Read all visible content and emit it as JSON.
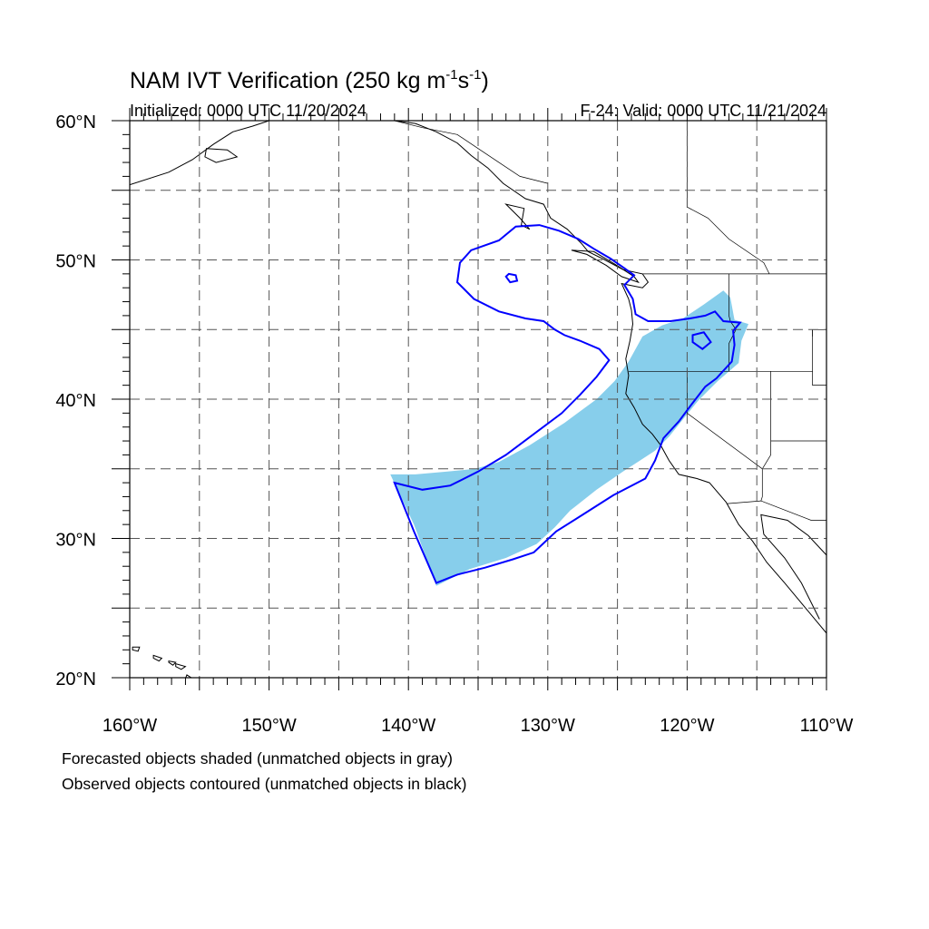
{
  "header": {
    "title_main": "NAM IVT Verification (250 kg m",
    "title_exp1": "-1",
    "title_mid": "s",
    "title_exp2": "-1",
    "title_close": ")",
    "initialized": "Initialized: 0000 UTC 11/20/2024",
    "valid": "F-24: Valid: 0000 UTC 11/21/2024"
  },
  "axes": {
    "lat_labels": [
      {
        "lat": 60,
        "text": "60°N"
      },
      {
        "lat": 50,
        "text": "50°N"
      },
      {
        "lat": 40,
        "text": "40°N"
      },
      {
        "lat": 30,
        "text": "30°N"
      },
      {
        "lat": 20,
        "text": "20°N"
      }
    ],
    "lon_labels": [
      {
        "lon": -160,
        "text": "160°W"
      },
      {
        "lon": -150,
        "text": "150°W"
      },
      {
        "lon": -140,
        "text": "140°W"
      },
      {
        "lon": -130,
        "text": "130°W"
      },
      {
        "lon": -120,
        "text": "120°W"
      },
      {
        "lon": -110,
        "text": "110°W"
      }
    ],
    "lon_range": [
      -160,
      -110
    ],
    "lat_range": [
      20,
      60
    ],
    "grid": true,
    "grid_interval_deg": 5
  },
  "legend": {
    "line1": "Forecasted objects shaded (unmatched objects in gray)",
    "line2": "Observed objects contoured (unmatched objects in black)"
  },
  "colors": {
    "forecast_fill": "#87ceeb",
    "observed_contour": "#0000ff",
    "coastline": "#000000",
    "grid": "#555555"
  },
  "objects": {
    "forecast": [
      [
        -141.3,
        34.6
      ],
      [
        -139.5,
        34.6
      ],
      [
        -137.2,
        34.8
      ],
      [
        -135.2,
        35.0
      ],
      [
        -133.5,
        35.5
      ],
      [
        -131.3,
        36.7
      ],
      [
        -128.8,
        38.3
      ],
      [
        -126.5,
        40.0
      ],
      [
        -125.2,
        41.3
      ],
      [
        -124.2,
        42.7
      ],
      [
        -123.2,
        44.5
      ],
      [
        -121.8,
        45.3
      ],
      [
        -120.3,
        45.8
      ],
      [
        -118.8,
        46.8
      ],
      [
        -117.4,
        47.8
      ],
      [
        -116.9,
        47.3
      ],
      [
        -116.6,
        45.7
      ],
      [
        -115.6,
        45.4
      ],
      [
        -116.1,
        44.2
      ],
      [
        -116.3,
        42.6
      ],
      [
        -117.8,
        41.3
      ],
      [
        -119.2,
        39.9
      ],
      [
        -120.1,
        38.8
      ],
      [
        -121.3,
        37.3
      ],
      [
        -122.3,
        36.3
      ],
      [
        -124.6,
        34.8
      ],
      [
        -126.5,
        33.5
      ],
      [
        -128.4,
        32.0
      ],
      [
        -129.5,
        30.8
      ],
      [
        -130.8,
        29.6
      ],
      [
        -133.0,
        28.6
      ],
      [
        -135.6,
        27.8
      ],
      [
        -138.0,
        26.6
      ],
      [
        -139.6,
        31.0
      ],
      [
        -141.3,
        34.6
      ]
    ],
    "observed_main": [
      [
        -141.0,
        34.0
      ],
      [
        -139.0,
        33.5
      ],
      [
        -137.0,
        33.8
      ],
      [
        -135.0,
        34.8
      ],
      [
        -133.0,
        36.0
      ],
      [
        -131.0,
        37.5
      ],
      [
        -129.0,
        39.0
      ],
      [
        -127.7,
        40.3
      ],
      [
        -126.5,
        41.6
      ],
      [
        -125.6,
        42.8
      ],
      [
        -126.3,
        43.6
      ],
      [
        -127.7,
        44.2
      ],
      [
        -128.8,
        44.6
      ],
      [
        -129.5,
        45.0
      ],
      [
        -130.3,
        45.6
      ],
      [
        -131.6,
        45.8
      ],
      [
        -133.5,
        46.3
      ],
      [
        -135.3,
        47.2
      ],
      [
        -136.5,
        48.4
      ],
      [
        -136.3,
        49.8
      ],
      [
        -135.5,
        50.7
      ],
      [
        -133.5,
        51.4
      ],
      [
        -132.3,
        52.4
      ],
      [
        -130.6,
        52.5
      ],
      [
        -129.2,
        52.1
      ],
      [
        -127.8,
        51.5
      ],
      [
        -126.7,
        50.8
      ],
      [
        -125.5,
        50.1
      ],
      [
        -124.5,
        49.4
      ],
      [
        -123.8,
        48.9
      ],
      [
        -124.5,
        48.2
      ],
      [
        -123.9,
        47.2
      ],
      [
        -123.7,
        46.1
      ],
      [
        -122.8,
        45.6
      ],
      [
        -121.2,
        45.6
      ],
      [
        -119.8,
        45.8
      ],
      [
        -118.7,
        46.0
      ],
      [
        -118.0,
        46.3
      ],
      [
        -117.4,
        45.6
      ],
      [
        -116.2,
        45.5
      ],
      [
        -116.7,
        44.9
      ],
      [
        -116.6,
        43.9
      ],
      [
        -116.8,
        42.7
      ],
      [
        -117.9,
        41.5
      ],
      [
        -118.7,
        40.9
      ],
      [
        -119.7,
        39.6
      ],
      [
        -120.6,
        38.4
      ],
      [
        -121.7,
        37.2
      ],
      [
        -122.3,
        35.6
      ],
      [
        -123.0,
        34.3
      ],
      [
        -125.3,
        33.1
      ],
      [
        -127.5,
        31.7
      ],
      [
        -129.4,
        30.5
      ],
      [
        -131.0,
        29.0
      ],
      [
        -132.5,
        28.5
      ],
      [
        -134.5,
        27.9
      ],
      [
        -136.5,
        27.4
      ],
      [
        -138.0,
        26.8
      ],
      [
        -139.6,
        30.5
      ],
      [
        -141.0,
        34.0
      ]
    ],
    "observed_hole": [
      [
        -132.8,
        49.0
      ],
      [
        -132.3,
        48.9
      ],
      [
        -132.2,
        48.5
      ],
      [
        -132.7,
        48.4
      ],
      [
        -133.0,
        48.8
      ],
      [
        -132.8,
        49.0
      ]
    ],
    "observed_lobe": [
      [
        -119.6,
        44.6
      ],
      [
        -118.8,
        44.8
      ],
      [
        -118.3,
        44.1
      ],
      [
        -118.9,
        43.6
      ],
      [
        -119.6,
        44.1
      ],
      [
        -119.6,
        44.6
      ]
    ]
  },
  "coast": {
    "main": [
      [
        -141.0,
        60.0
      ],
      [
        -139.5,
        59.8
      ],
      [
        -138.0,
        59.2
      ],
      [
        -136.5,
        58.4
      ],
      [
        -135.5,
        57.5
      ],
      [
        -134.3,
        56.6
      ],
      [
        -133.2,
        55.5
      ],
      [
        -131.6,
        54.4
      ],
      [
        -130.3,
        54.0
      ],
      [
        -129.8,
        53.0
      ],
      [
        -128.6,
        52.2
      ],
      [
        -127.6,
        51.2
      ],
      [
        -127.1,
        50.6
      ],
      [
        -125.9,
        50.0
      ],
      [
        -124.6,
        49.3
      ],
      [
        -123.2,
        49.0
      ],
      [
        -122.8,
        48.4
      ],
      [
        -123.2,
        48.0
      ],
      [
        -124.7,
        48.3
      ],
      [
        -124.2,
        47.2
      ],
      [
        -124.0,
        46.4
      ],
      [
        -123.9,
        45.4
      ],
      [
        -124.1,
        44.2
      ],
      [
        -124.4,
        42.9
      ],
      [
        -124.2,
        41.7
      ],
      [
        -124.4,
        40.4
      ],
      [
        -123.8,
        39.4
      ],
      [
        -123.2,
        38.2
      ],
      [
        -122.5,
        37.5
      ],
      [
        -121.9,
        36.7
      ],
      [
        -121.3,
        35.6
      ],
      [
        -120.6,
        34.6
      ],
      [
        -119.3,
        34.3
      ],
      [
        -118.4,
        34.0
      ],
      [
        -117.2,
        32.6
      ],
      [
        -116.3,
        31.0
      ],
      [
        -115.3,
        29.8
      ],
      [
        -114.3,
        28.3
      ],
      [
        -113.0,
        26.8
      ],
      [
        -111.5,
        25.0
      ],
      [
        -110.0,
        23.2
      ]
    ],
    "gulf": [
      [
        -110.0,
        28.8
      ],
      [
        -111.3,
        30.2
      ],
      [
        -112.8,
        31.3
      ],
      [
        -114.7,
        31.7
      ],
      [
        -114.5,
        30.3
      ],
      [
        -113.0,
        28.6
      ],
      [
        -111.8,
        26.8
      ],
      [
        -110.5,
        24.2
      ]
    ],
    "alaska": [
      [
        -160.0,
        55.4
      ],
      [
        -157.2,
        56.3
      ],
      [
        -155.5,
        57.2
      ],
      [
        -154.0,
        58.3
      ],
      [
        -152.6,
        59.2
      ],
      [
        -151.2,
        59.6
      ],
      [
        -150.0,
        60.0
      ]
    ],
    "vancouver_island": [
      [
        -128.3,
        50.7
      ],
      [
        -127.2,
        50.4
      ],
      [
        -125.8,
        49.6
      ],
      [
        -124.7,
        48.8
      ],
      [
        -123.5,
        48.4
      ],
      [
        -123.8,
        48.8
      ],
      [
        -125.2,
        49.7
      ],
      [
        -126.7,
        50.6
      ],
      [
        -128.3,
        50.7
      ]
    ],
    "haida_gwaii": [
      [
        -133.0,
        54.0
      ],
      [
        -131.7,
        53.7
      ],
      [
        -131.9,
        52.5
      ],
      [
        -131.3,
        52.2
      ],
      [
        -132.0,
        53.0
      ],
      [
        -133.0,
        54.0
      ]
    ],
    "kodiak": [
      [
        -154.5,
        58.0
      ],
      [
        -153.0,
        57.9
      ],
      [
        -152.3,
        57.4
      ],
      [
        -153.8,
        57.0
      ],
      [
        -154.6,
        57.4
      ],
      [
        -154.5,
        58.0
      ]
    ],
    "hawaii": [
      [
        [
          -159.8,
          22.2
        ],
        [
          -159.3,
          22.2
        ],
        [
          -159.4,
          21.9
        ],
        [
          -159.8,
          22.0
        ],
        [
          -159.8,
          22.2
        ]
      ],
      [
        [
          -158.3,
          21.6
        ],
        [
          -157.7,
          21.4
        ],
        [
          -157.9,
          21.2
        ],
        [
          -158.3,
          21.4
        ],
        [
          -158.3,
          21.6
        ]
      ],
      [
        [
          -157.2,
          21.2
        ],
        [
          -156.7,
          21.1
        ],
        [
          -156.9,
          20.9
        ],
        [
          -157.2,
          21.1
        ],
        [
          -157.2,
          21.2
        ]
      ],
      [
        [
          -156.7,
          21.0
        ],
        [
          -156.0,
          20.8
        ],
        [
          -156.3,
          20.6
        ],
        [
          -156.7,
          20.8
        ],
        [
          -156.7,
          21.0
        ]
      ],
      [
        [
          -155.9,
          20.2
        ],
        [
          -154.8,
          19.5
        ],
        [
          -155.7,
          18.9
        ],
        [
          -156.1,
          19.7
        ],
        [
          -155.9,
          20.2
        ]
      ]
    ]
  },
  "borders": {
    "canada_us": [
      [
        -123.2,
        49.0
      ],
      [
        -110.0,
        49.0
      ]
    ],
    "us_mexico": [
      [
        -117.1,
        32.5
      ],
      [
        -114.7,
        32.7
      ],
      [
        -111.1,
        31.3
      ],
      [
        -110.0,
        31.3
      ]
    ],
    "bc_alberta": [
      [
        -120.0,
        60.0
      ],
      [
        -120.0,
        53.8
      ],
      [
        -118.5,
        53.0
      ],
      [
        -117.0,
        51.5
      ],
      [
        -114.5,
        49.8
      ],
      [
        -114.1,
        49.0
      ]
    ],
    "alaska_bc": [
      [
        -141.0,
        60.0
      ],
      [
        -139.0,
        59.5
      ],
      [
        -136.5,
        59.0
      ],
      [
        -135.0,
        58.0
      ],
      [
        -133.5,
        57.0
      ],
      [
        -132.0,
        56.0
      ],
      [
        -130.0,
        55.5
      ]
    ],
    "states": [
      [
        [
          -117.0,
          49.0
        ],
        [
          -117.0,
          46.0
        ],
        [
          -116.9,
          45.6
        ],
        [
          -116.5,
          45.0
        ],
        [
          -117.0,
          44.0
        ],
        [
          -117.0,
          42.0
        ]
      ],
      [
        [
          -124.2,
          42.0
        ],
        [
          -111.0,
          42.0
        ]
      ],
      [
        [
          -120.0,
          42.0
        ],
        [
          -120.0,
          39.0
        ],
        [
          -114.6,
          35.0
        ]
      ],
      [
        [
          -114.0,
          42.0
        ],
        [
          -114.0,
          37.0
        ]
      ],
      [
        [
          -111.0,
          45.0
        ],
        [
          -111.0,
          41.0
        ],
        [
          -110.0,
          41.0
        ]
      ],
      [
        [
          -110.0,
          45.0
        ],
        [
          -111.0,
          45.0
        ],
        [
          -111.0,
          44.5
        ]
      ],
      [
        [
          -114.0,
          37.0
        ],
        [
          -114.0,
          36.0
        ],
        [
          -114.6,
          35.0
        ],
        [
          -114.6,
          33.0
        ],
        [
          -114.7,
          32.7
        ]
      ],
      [
        [
          -114.0,
          37.0
        ],
        [
          -110.0,
          37.0
        ]
      ]
    ]
  }
}
